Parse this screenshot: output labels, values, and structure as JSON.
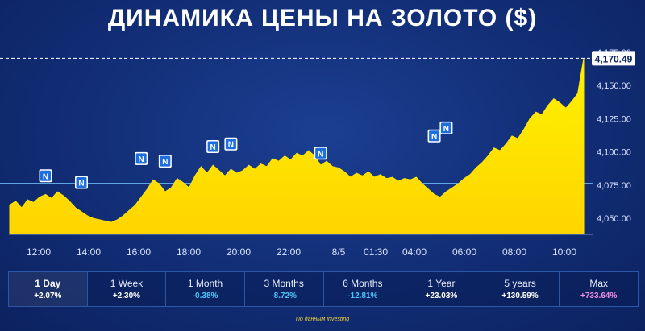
{
  "title": "ДИНАМИКА ЦЕНЫ НА ЗОЛОТО ($)",
  "source": "По данным Investing",
  "colors": {
    "area": "#ffe600",
    "marker": "#1d6fe0",
    "positive": "#ffffff",
    "negative": "#4fc3f7",
    "max": "#f48fe6",
    "axis_text": "#d8e2ff",
    "price_label_bg": "#ffffff",
    "price_label_text": "#0c2260"
  },
  "chart_data": {
    "type": "area",
    "title": "ДИНАМИКА ЦЕНЫ НА ЗОЛОТО ($)",
    "xlabel": "",
    "ylabel": "",
    "x_ticks": [
      "12:00",
      "14:00",
      "16:00",
      "18:00",
      "20:00",
      "22:00",
      "8/5",
      "01:30",
      "04:00",
      "06:00",
      "08:00",
      "10:00"
    ],
    "y_ticks": [
      4050,
      4075,
      4100,
      4125,
      4150,
      4175
    ],
    "y_tick_labels": [
      "4,050.00",
      "4,075.00",
      "4,100.00",
      "4,125.00",
      "4,150.00",
      "4,175.00"
    ],
    "ylim": [
      4038,
      4178
    ],
    "reference_line": 4076.5,
    "last_price": 4170.49,
    "last_price_label": "4,170.49",
    "series": [
      {
        "values": [
          4060,
          4063,
          4058,
          4064,
          4062,
          4066,
          4068,
          4065,
          4070,
          4067,
          4063,
          4058,
          4055,
          4052,
          4050,
          4049,
          4048,
          4047,
          4049,
          4052,
          4056,
          4060,
          4066,
          4072,
          4079,
          4076,
          4070,
          4073,
          4080,
          4077,
          4073,
          4082,
          4089,
          4084,
          4090,
          4086,
          4082,
          4087,
          4084,
          4086,
          4090,
          4087,
          4091,
          4089,
          4095,
          4093,
          4097,
          4094,
          4099,
          4097,
          4101,
          4097,
          4090,
          4093,
          4089,
          4088,
          4085,
          4081,
          4084,
          4082,
          4085,
          4081,
          4083,
          4080,
          4081,
          4078,
          4080,
          4079,
          4081,
          4076,
          4072,
          4068,
          4066,
          4070,
          4073,
          4076,
          4080,
          4083,
          4088,
          4092,
          4097,
          4103,
          4101,
          4106,
          4112,
          4110,
          4117,
          4125,
          4130,
          4128,
          4135,
          4140,
          4137,
          4133,
          4138,
          4144,
          4170.49
        ]
      }
    ],
    "news_markers": [
      {
        "label": "N",
        "index": 6,
        "value": 4076
      },
      {
        "label": "N",
        "index": 12,
        "value": 4071
      },
      {
        "label": "N",
        "index": 22,
        "value": 4089
      },
      {
        "label": "N",
        "index": 26,
        "value": 4087
      },
      {
        "label": "N",
        "index": 34,
        "value": 4098
      },
      {
        "label": "N",
        "index": 37,
        "value": 4100
      },
      {
        "label": "N",
        "index": 52,
        "value": 4093
      },
      {
        "label": "N",
        "index": 71,
        "value": 4106
      },
      {
        "label": "N",
        "index": 73,
        "value": 4112
      }
    ]
  },
  "periods": [
    {
      "label": "1 Day",
      "change": "+2.07%",
      "active": true,
      "color": "#ffffff"
    },
    {
      "label": "1 Week",
      "change": "+2.30%",
      "active": false,
      "color": "#ffffff"
    },
    {
      "label": "1 Month",
      "change": "-0.38%",
      "active": false,
      "color": "#4fc3f7"
    },
    {
      "label": "3 Months",
      "change": "-8.72%",
      "active": false,
      "color": "#4fc3f7"
    },
    {
      "label": "6 Months",
      "change": "-12.81%",
      "active": false,
      "color": "#4fc3f7"
    },
    {
      "label": "1 Year",
      "change": "+23.03%",
      "active": false,
      "color": "#ffffff"
    },
    {
      "label": "5 years",
      "change": "+130.59%",
      "active": false,
      "color": "#ffffff"
    },
    {
      "label": "Max",
      "change": "+733.64%",
      "active": false,
      "color": "#f48fe6"
    }
  ]
}
